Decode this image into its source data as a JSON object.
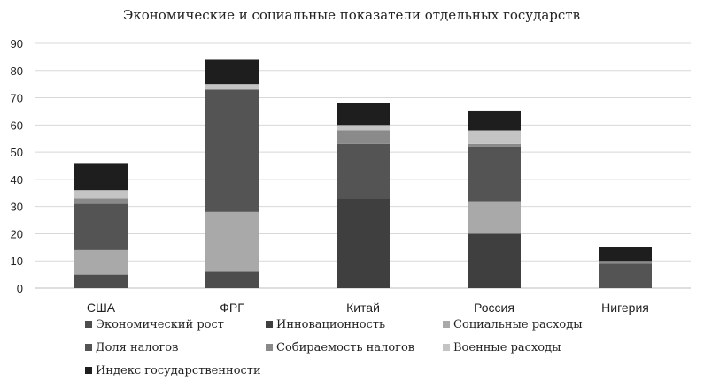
{
  "chart_data": {
    "type": "bar",
    "stacked": true,
    "title": "Экономические и социальные показатели отдельных государств",
    "xlabel": "",
    "ylabel": "",
    "ylim": [
      0,
      90
    ],
    "yticks": [
      0,
      10,
      20,
      30,
      40,
      50,
      60,
      70,
      80,
      90
    ],
    "grid": true,
    "legend_position": "bottom",
    "categories": [
      "США",
      "ФРГ",
      "Китай",
      "Россия",
      "Нигерия"
    ],
    "series": [
      {
        "name": "Экономический рост",
        "color": "#4d4d4d",
        "values": [
          5,
          6,
          0,
          0,
          0
        ]
      },
      {
        "name": "Инновационность",
        "color": "#3f3f3f",
        "values": [
          0,
          0,
          33,
          20,
          0
        ]
      },
      {
        "name": "Социальные расходы",
        "color": "#a9a9a9",
        "values": [
          9,
          22,
          0,
          12,
          0
        ]
      },
      {
        "name": "Доля налогов",
        "color": "#545454",
        "values": [
          17,
          45,
          20,
          20,
          9
        ]
      },
      {
        "name": "Собираемость налогов",
        "color": "#8a8a8a",
        "values": [
          2,
          0,
          5,
          1,
          1
        ]
      },
      {
        "name": "Военные расходы",
        "color": "#c4c4c4",
        "values": [
          3,
          2,
          2,
          5,
          0
        ]
      },
      {
        "name": "Индекс государственности",
        "color": "#1e1e1e",
        "values": [
          10,
          9,
          8,
          7,
          5
        ]
      }
    ]
  }
}
